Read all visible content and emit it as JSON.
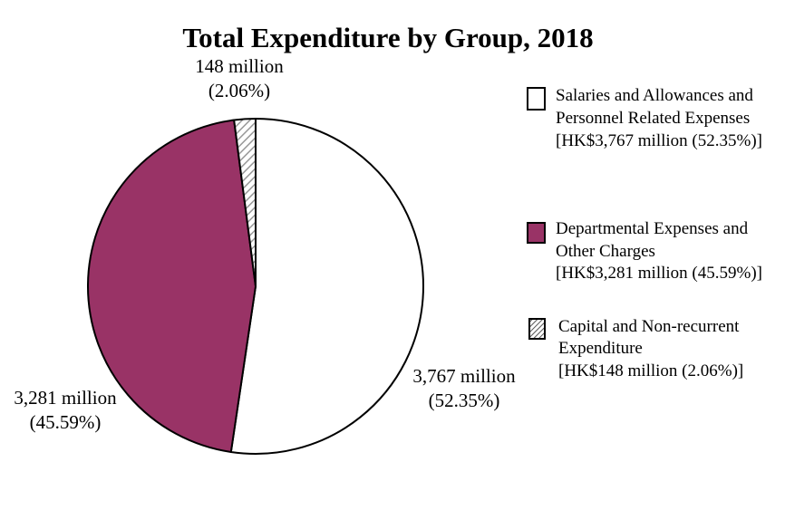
{
  "chart_data": {
    "type": "pie",
    "title": "Total Expenditure by Group, 2018",
    "unit": "HK$ million",
    "slices": [
      {
        "name": "Salaries and Allowances and Personnel Related Expenses",
        "value": 3767,
        "percent": 52.35,
        "color": "#ffffff",
        "pattern": "solid",
        "data_label": [
          "3,767 million",
          "(52.35%)"
        ],
        "legend_lines": [
          "Salaries and Allowances and",
          "Personnel Related Expenses",
          "[HK$3,767 million (52.35%)]"
        ]
      },
      {
        "name": "Departmental Expenses and Other Charges",
        "value": 3281,
        "percent": 45.59,
        "color": "#993366",
        "pattern": "solid",
        "data_label": [
          "3,281 million",
          "(45.59%)"
        ],
        "legend_lines": [
          "Departmental Expenses and",
          "Other Charges",
          "[HK$3,281 million (45.59%)]"
        ]
      },
      {
        "name": "Capital and Non-recurrent Expenditure",
        "value": 148,
        "percent": 2.06,
        "color": "#ffffff",
        "pattern": "diagonal-hatch",
        "hatch_color": "#999999",
        "data_label": [
          "148 million",
          "(2.06%)"
        ],
        "legend_lines": [
          "Capital and Non-recurrent",
          "Expenditure",
          "[HK$148  million (2.06%)]"
        ]
      }
    ],
    "start_angle": "12 o'clock",
    "direction": "clockwise",
    "legend_position": "right"
  }
}
